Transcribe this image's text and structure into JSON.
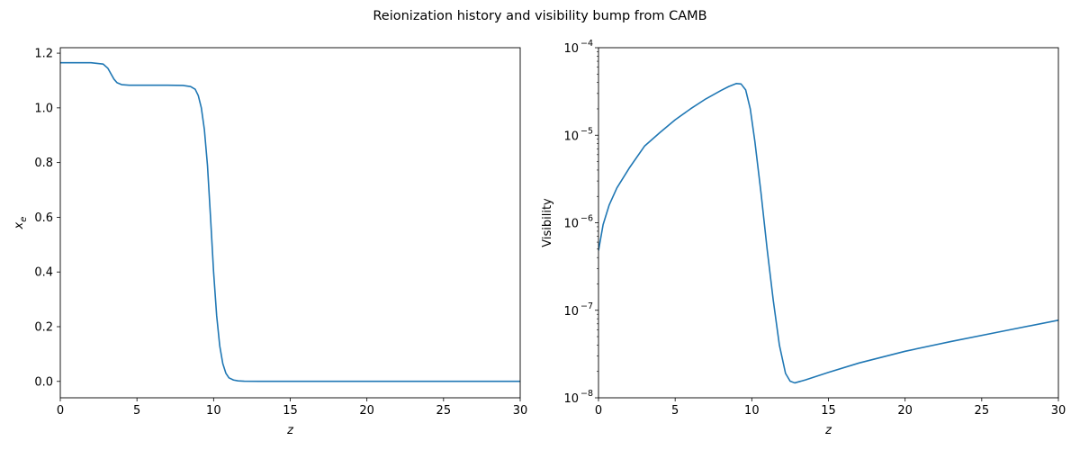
{
  "figure": {
    "title": "Reionization history and visibility bump from CAMB"
  },
  "chart_data": [
    {
      "type": "line",
      "xlabel": "z",
      "ylabel_base": "x",
      "ylabel_sub": "e",
      "xlim": [
        0,
        30
      ],
      "ylim": [
        -0.06,
        1.22
      ],
      "x_ticks": [
        0,
        5,
        10,
        15,
        20,
        25,
        30
      ],
      "y_ticks": [
        0.0,
        0.2,
        0.4,
        0.6,
        0.8,
        1.0,
        1.2
      ],
      "y_tick_labels": [
        "0.0",
        "0.2",
        "0.4",
        "0.6",
        "0.8",
        "1.0",
        "1.2"
      ],
      "series_color": "#1f77b4",
      "series": [
        {
          "x": [
            0,
            1,
            2,
            2.8,
            3.1,
            3.3,
            3.5,
            3.7,
            4.0,
            4.5,
            5,
            6,
            7,
            8,
            8.5,
            8.8,
            9.0,
            9.2,
            9.4,
            9.6,
            9.8,
            10.0,
            10.2,
            10.4,
            10.6,
            10.8,
            11.0,
            11.3,
            11.6,
            12,
            13,
            15,
            20,
            25,
            30
          ],
          "y": [
            1.165,
            1.165,
            1.165,
            1.16,
            1.145,
            1.125,
            1.105,
            1.092,
            1.085,
            1.083,
            1.083,
            1.083,
            1.083,
            1.082,
            1.078,
            1.068,
            1.045,
            1.0,
            0.92,
            0.79,
            0.6,
            0.4,
            0.24,
            0.13,
            0.065,
            0.03,
            0.013,
            0.005,
            0.002,
            0.0005,
            0.0002,
            0.0002,
            0.0002,
            0.0002,
            0.0002
          ]
        }
      ]
    },
    {
      "type": "line",
      "xlabel": "z",
      "ylabel": "Visibility",
      "yscale": "log",
      "xlim": [
        0,
        30
      ],
      "ylim": [
        1e-08,
        0.0001
      ],
      "x_ticks": [
        0,
        5,
        10,
        15,
        20,
        25,
        30
      ],
      "y_tick_exponents": [
        -8,
        -7,
        -6,
        -5,
        -4
      ],
      "series_color": "#1f77b4",
      "series": [
        {
          "x": [
            0,
            0.3,
            0.7,
            1.2,
            2,
            3,
            4,
            5,
            6,
            7,
            8,
            8.5,
            9.0,
            9.3,
            9.6,
            9.9,
            10.2,
            10.6,
            11.0,
            11.4,
            11.8,
            12.2,
            12.5,
            12.8,
            13.5,
            15,
            17,
            20,
            23,
            26,
            30
          ],
          "y": [
            4.8e-07,
            9.5e-07,
            1.6e-06,
            2.5e-06,
            4.2e-06,
            7.5e-06,
            1.07e-05,
            1.5e-05,
            2e-05,
            2.6e-05,
            3.25e-05,
            3.6e-05,
            3.9e-05,
            3.85e-05,
            3.3e-05,
            2e-05,
            8.5e-06,
            2.2e-06,
            5e-07,
            1.3e-07,
            4e-08,
            1.9e-08,
            1.55e-08,
            1.48e-08,
            1.6e-08,
            1.95e-08,
            2.5e-08,
            3.4e-08,
            4.4e-08,
            5.6e-08,
            7.7e-08
          ]
        }
      ]
    }
  ]
}
